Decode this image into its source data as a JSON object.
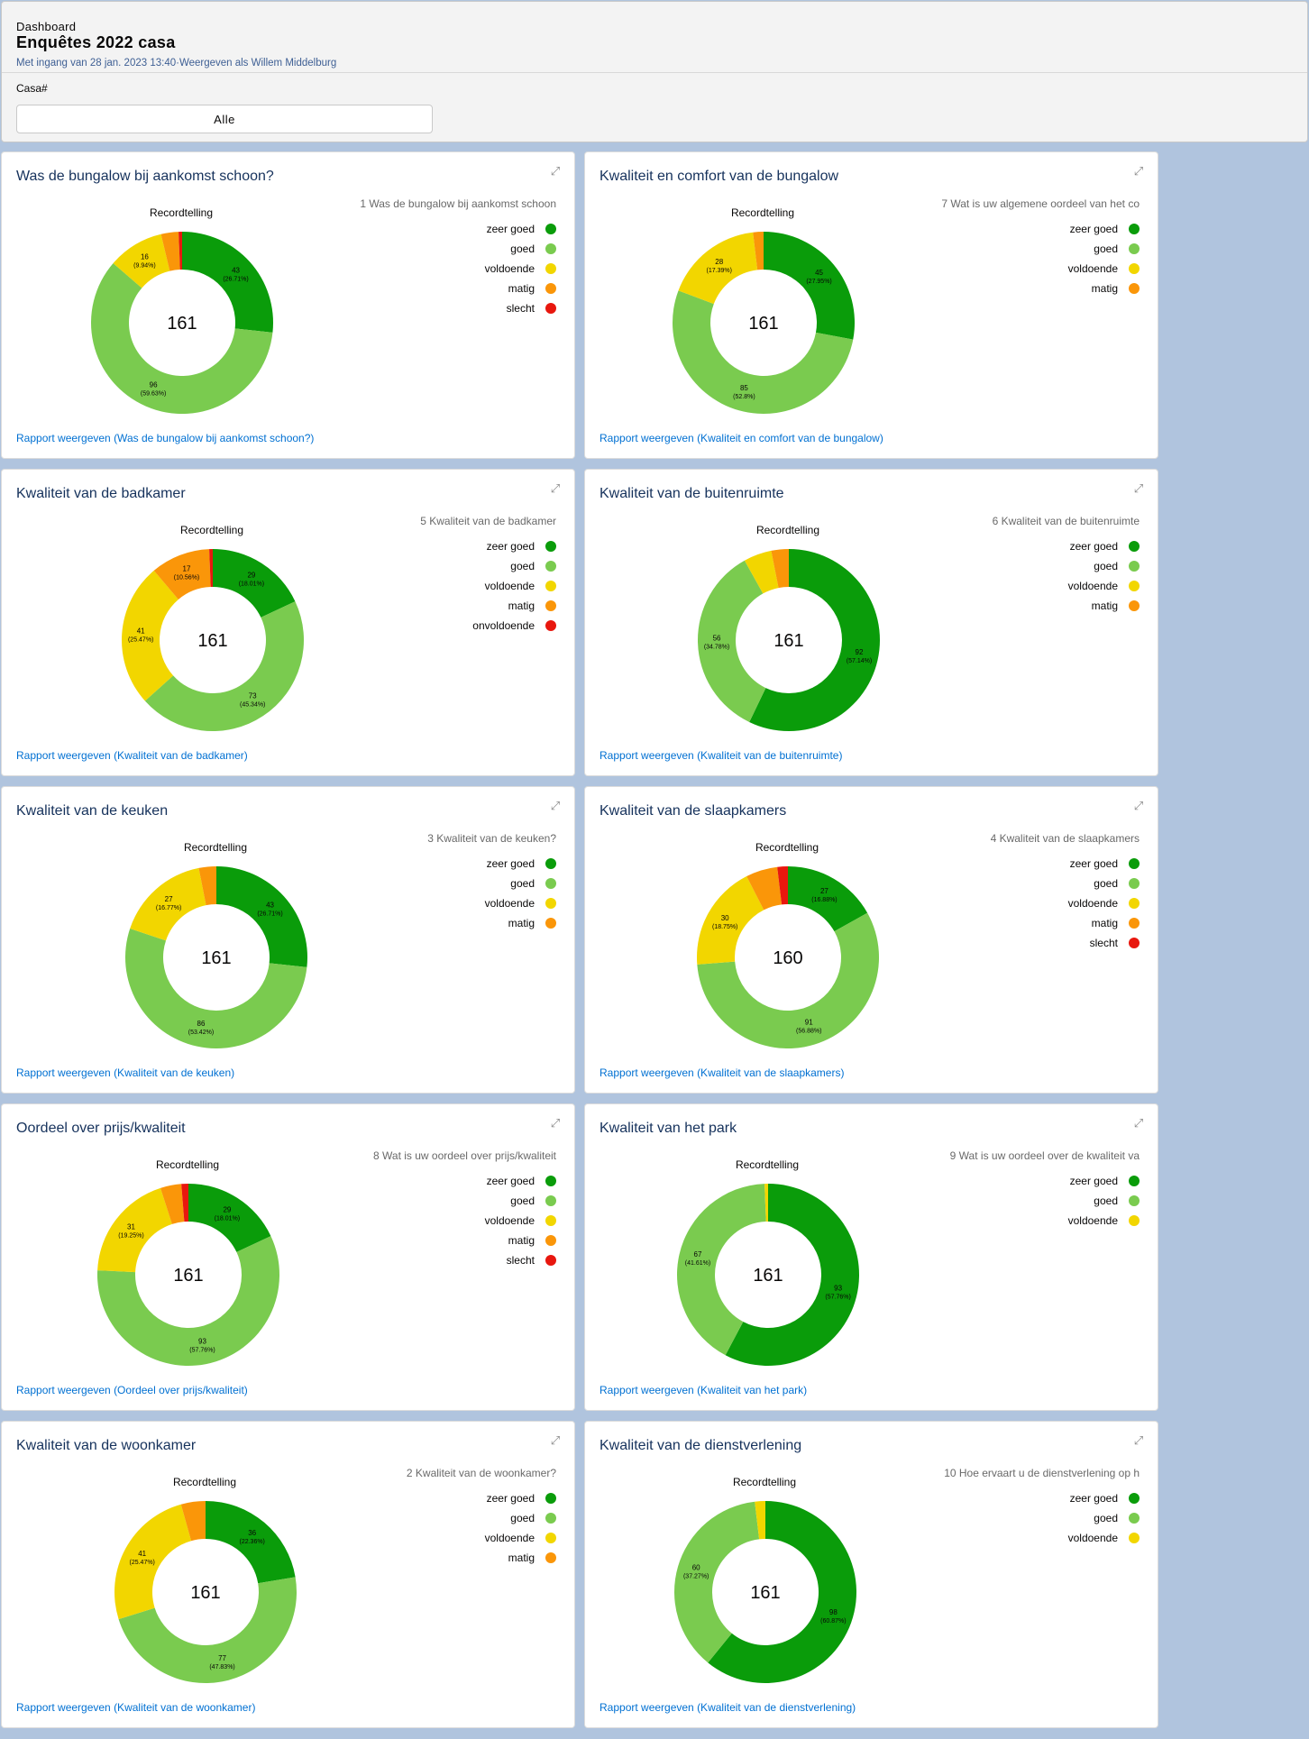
{
  "header": {
    "eyebrow": "Dashboard",
    "title": "Enquêtes 2022 casa",
    "subtitle": "Met ingang van 28 jan. 2023 13:40·Weergeven als Willem Middelburg",
    "filter_label": "Casa#",
    "filter_value": "Alle"
  },
  "colors": {
    "zeer goed": "#0a9c0a",
    "goed": "#7acb4f",
    "voldoende": "#f2d600",
    "matig": "#fa9609",
    "slecht": "#e8170e",
    "onvoldoende": "#e8170e"
  },
  "chart_data": [
    {
      "type": "pie",
      "title": "Was de bungalow bij aankomst schoon?",
      "chart_label": "Recordtelling",
      "total": "161",
      "legend_title": "1 Was de bungalow bij aankomst schoon",
      "slices": [
        {
          "label": "zeer goed",
          "value": 43,
          "text": "43",
          "pct": "(26.71%)"
        },
        {
          "label": "goed",
          "value": 96,
          "text": "96",
          "pct": "(59.63%)"
        },
        {
          "label": "voldoende",
          "value": 16,
          "text": "16",
          "pct": "(9.94%)"
        },
        {
          "label": "matig",
          "value": 5
        },
        {
          "label": "slecht",
          "value": 1
        }
      ],
      "link": "Rapport weergeven (Was de bungalow bij aankomst schoon?)"
    },
    {
      "type": "pie",
      "title": "Kwaliteit en comfort van de bungalow",
      "chart_label": "Recordtelling",
      "total": "161",
      "legend_title": "7 Wat is uw  algemene oordeel van het co",
      "slices": [
        {
          "label": "zeer goed",
          "value": 45,
          "text": "45",
          "pct": "(27.95%)"
        },
        {
          "label": "goed",
          "value": 85,
          "text": "85",
          "pct": "(52.8%)"
        },
        {
          "label": "voldoende",
          "value": 28,
          "text": "28",
          "pct": "(17.39%)"
        },
        {
          "label": "matig",
          "value": 3
        }
      ],
      "link": "Rapport weergeven (Kwaliteit en comfort van de bungalow)"
    },
    {
      "type": "pie",
      "title": "Kwaliteit van de badkamer",
      "chart_label": "Recordtelling",
      "total": "161",
      "legend_title": "5 Kwaliteit van de badkamer",
      "slices": [
        {
          "label": "zeer goed",
          "value": 29,
          "text": "29",
          "pct": "(18.01%)"
        },
        {
          "label": "goed",
          "value": 73,
          "text": "73",
          "pct": "(45.34%)"
        },
        {
          "label": "voldoende",
          "value": 41,
          "text": "41",
          "pct": "(25.47%)"
        },
        {
          "label": "matig",
          "value": 17,
          "text": "17",
          "pct": "(10.56%)"
        },
        {
          "label": "onvoldoende",
          "value": 1
        }
      ],
      "link": "Rapport weergeven (Kwaliteit van de badkamer)"
    },
    {
      "type": "pie",
      "title": "Kwaliteit van de buitenruimte",
      "chart_label": "Recordtelling",
      "total": "161",
      "legend_title": "6 Kwaliteit van de buitenruimte",
      "slices": [
        {
          "label": "zeer goed",
          "value": 92,
          "text": "92",
          "pct": "(57.14%)"
        },
        {
          "label": "goed",
          "value": 56,
          "text": "56",
          "pct": "(34.78%)"
        },
        {
          "label": "voldoende",
          "value": 8
        },
        {
          "label": "matig",
          "value": 5
        }
      ],
      "link": "Rapport weergeven (Kwaliteit van de buitenruimte)"
    },
    {
      "type": "pie",
      "title": "Kwaliteit van de keuken",
      "chart_label": "Recordtelling",
      "total": "161",
      "legend_title": "3 Kwaliteit van de keuken?",
      "slices": [
        {
          "label": "zeer goed",
          "value": 43,
          "text": "43",
          "pct": "(26.71%)"
        },
        {
          "label": "goed",
          "value": 86,
          "text": "86",
          "pct": "(53.42%)"
        },
        {
          "label": "voldoende",
          "value": 27,
          "text": "27",
          "pct": "(16.77%)"
        },
        {
          "label": "matig",
          "value": 5
        }
      ],
      "link": "Rapport weergeven (Kwaliteit van de keuken)"
    },
    {
      "type": "pie",
      "title": "Kwaliteit van de slaapkamers",
      "chart_label": "Recordtelling",
      "total": "160",
      "legend_title": "4 Kwaliteit van de slaapkamers",
      "slices": [
        {
          "label": "zeer goed",
          "value": 27,
          "text": "27",
          "pct": "(16.88%)"
        },
        {
          "label": "goed",
          "value": 91,
          "text": "91",
          "pct": "(56.88%)"
        },
        {
          "label": "voldoende",
          "value": 30,
          "text": "30",
          "pct": "(18.75%)"
        },
        {
          "label": "matig",
          "value": 9
        },
        {
          "label": "slecht",
          "value": 3
        }
      ],
      "link": "Rapport weergeven (Kwaliteit van de slaapkamers)"
    },
    {
      "type": "pie",
      "title": "Oordeel over prijs/kwaliteit",
      "chart_label": "Recordtelling",
      "total": "161",
      "legend_title": "8 Wat is uw oordeel over prijs/kwaliteit",
      "slices": [
        {
          "label": "zeer goed",
          "value": 29,
          "text": "29",
          "pct": "(18.01%)"
        },
        {
          "label": "goed",
          "value": 93,
          "text": "93",
          "pct": "(57.76%)"
        },
        {
          "label": "voldoende",
          "value": 31,
          "text": "31",
          "pct": "(19.25%)"
        },
        {
          "label": "matig",
          "value": 6
        },
        {
          "label": "slecht",
          "value": 2
        }
      ],
      "link": "Rapport weergeven (Oordeel over prijs/kwaliteit)"
    },
    {
      "type": "pie",
      "title": "Kwaliteit van het park",
      "chart_label": "Recordtelling",
      "total": "161",
      "legend_title": "9 Wat is uw oordeel over de kwaliteit va",
      "slices": [
        {
          "label": "zeer goed",
          "value": 93,
          "text": "93",
          "pct": "(57.76%)"
        },
        {
          "label": "goed",
          "value": 67,
          "text": "67",
          "pct": "(41.61%)"
        },
        {
          "label": "voldoende",
          "value": 1
        }
      ],
      "link": "Rapport weergeven (Kwaliteit van het park)"
    },
    {
      "type": "pie",
      "title": "Kwaliteit van de woonkamer",
      "chart_label": "Recordtelling",
      "total": "161",
      "legend_title": "2 Kwaliteit van de woonkamer?",
      "slices": [
        {
          "label": "zeer goed",
          "value": 36,
          "text": "36",
          "pct": "(22.36%)"
        },
        {
          "label": "goed",
          "value": 77,
          "text": "77",
          "pct": "(47.83%)"
        },
        {
          "label": "voldoende",
          "value": 41,
          "text": "41",
          "pct": "(25.47%)"
        },
        {
          "label": "matig",
          "value": 7
        }
      ],
      "link": "Rapport weergeven (Kwaliteit van de woonkamer)"
    },
    {
      "type": "pie",
      "title": "Kwaliteit van de dienstverlening",
      "chart_label": "Recordtelling",
      "total": "161",
      "legend_title": "10 Hoe ervaart u de dienstverlening op h",
      "slices": [
        {
          "label": "zeer goed",
          "value": 98,
          "text": "98",
          "pct": "(60.87%)"
        },
        {
          "label": "goed",
          "value": 60,
          "text": "60",
          "pct": "(37.27%)"
        },
        {
          "label": "voldoende",
          "value": 3
        }
      ],
      "link": "Rapport weergeven (Kwaliteit van de dienstverlening)"
    }
  ]
}
